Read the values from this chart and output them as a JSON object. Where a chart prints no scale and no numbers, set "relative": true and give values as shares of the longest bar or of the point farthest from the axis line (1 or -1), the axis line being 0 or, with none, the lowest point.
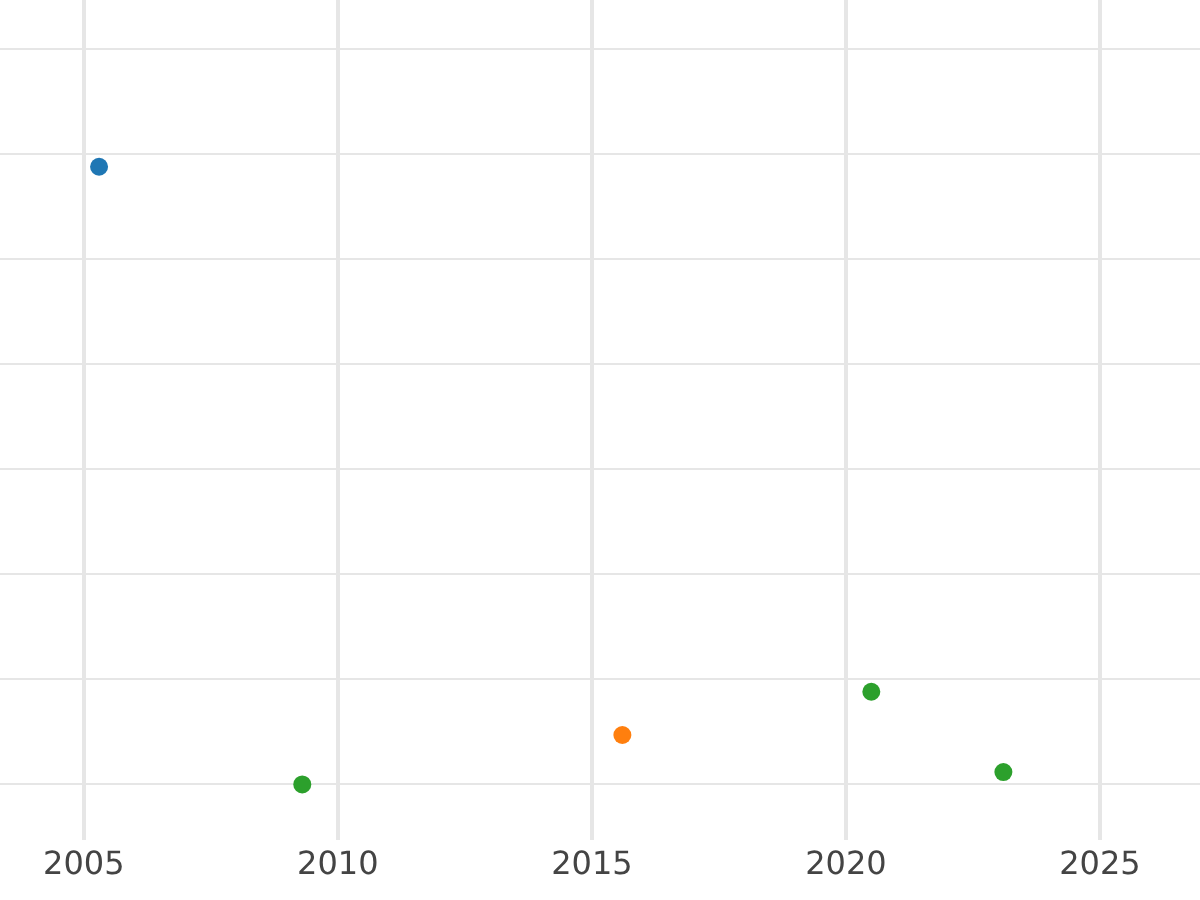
{
  "chart_data": {
    "type": "scatter",
    "relative": true,
    "marker": "circle",
    "grid": true,
    "xlim": [
      2003.35,
      2026.97
    ],
    "xticks": [
      2005,
      2010,
      2015,
      2020,
      2025
    ],
    "series": [
      {
        "color": "#1f77b4",
        "x": [
          2005.3
        ],
        "values": [
          1
        ]
      },
      {
        "color": "#2ca02c",
        "x": [
          2009.3,
          2020.5,
          2023.1
        ],
        "values": [
          0,
          0.15,
          0.02
        ]
      },
      {
        "color": "#ff7f0e",
        "x": [
          2015.6
        ],
        "values": [
          0.08
        ]
      }
    ]
  }
}
